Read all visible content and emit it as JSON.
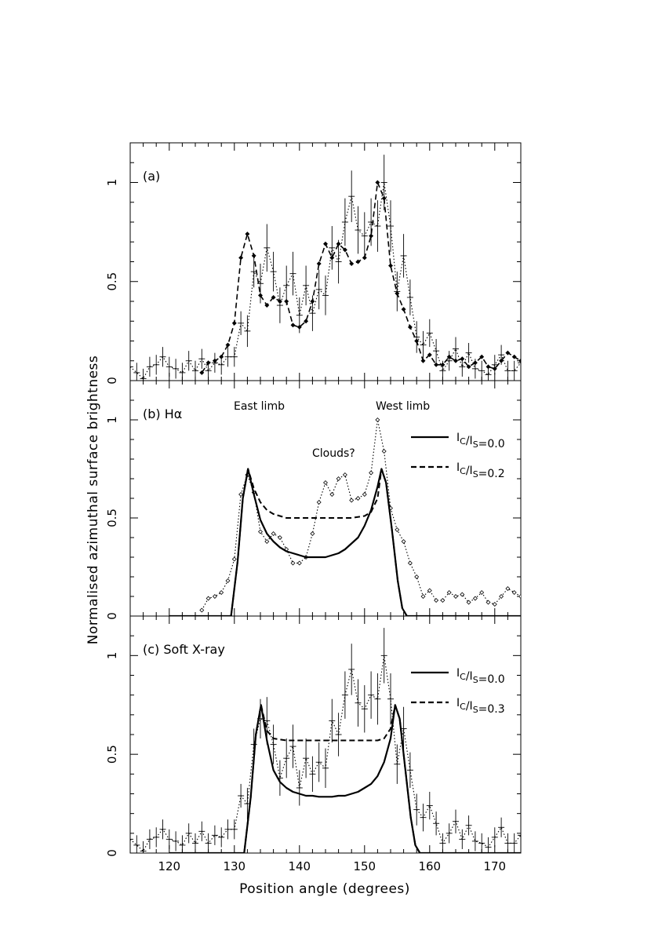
{
  "chart_data": {
    "type": "line",
    "xlabel": "Position angle (degrees)",
    "ylabel": "Normalised azimuthal surface brightness",
    "xlim": [
      114,
      174
    ],
    "x_ticks": [
      "120",
      "130",
      "140",
      "150",
      "160",
      "170"
    ],
    "x_tick_values": [
      120,
      130,
      140,
      150,
      160,
      170
    ],
    "ylim": [
      0,
      1.2
    ],
    "y_ticks": [
      "0",
      "0.5",
      "1"
    ],
    "y_tick_values": [
      0,
      0.5,
      1
    ],
    "panels": [
      {
        "id": "a",
        "label": "(a)",
        "annotations": [],
        "legend": [],
        "series": [
          {
            "style": "dotted-errorbars",
            "x": [
              114,
              115,
              116,
              117,
              118,
              119,
              120,
              121,
              122,
              123,
              124,
              125,
              126,
              127,
              128,
              129,
              130,
              131,
              132,
              133,
              134,
              135,
              136,
              137,
              138,
              139,
              140,
              141,
              142,
              143,
              144,
              145,
              146,
              147,
              148,
              149,
              150,
              151,
              152,
              153,
              154,
              155,
              156,
              157,
              158,
              159,
              160,
              161,
              162,
              163,
              164,
              165,
              166,
              167,
              168,
              169,
              170,
              171,
              172,
              173,
              174
            ],
            "y": [
              0.07,
              0.04,
              0.01,
              0.07,
              0.08,
              0.12,
              0.07,
              0.06,
              0.04,
              0.1,
              0.05,
              0.11,
              0.05,
              0.09,
              0.08,
              0.12,
              0.12,
              0.29,
              0.25,
              0.55,
              0.49,
              0.67,
              0.55,
              0.38,
              0.48,
              0.54,
              0.33,
              0.48,
              0.34,
              0.46,
              0.43,
              0.67,
              0.6,
              0.8,
              0.93,
              0.76,
              0.73,
              0.8,
              0.78,
              1.0,
              0.78,
              0.45,
              0.63,
              0.42,
              0.22,
              0.18,
              0.24,
              0.15,
              0.05,
              0.1,
              0.16,
              0.07,
              0.14,
              0.06,
              0.05,
              0.03,
              0.08,
              0.13,
              0.05,
              0.05,
              0.09
            ],
            "err": [
              0.05,
              0.05,
              0.05,
              0.05,
              0.05,
              0.05,
              0.05,
              0.05,
              0.05,
              0.05,
              0.05,
              0.05,
              0.05,
              0.05,
              0.05,
              0.05,
              0.05,
              0.06,
              0.08,
              0.08,
              0.1,
              0.12,
              0.1,
              0.09,
              0.1,
              0.11,
              0.09,
              0.1,
              0.09,
              0.1,
              0.1,
              0.11,
              0.11,
              0.12,
              0.13,
              0.12,
              0.12,
              0.12,
              0.13,
              0.14,
              0.13,
              0.1,
              0.11,
              0.09,
              0.08,
              0.07,
              0.07,
              0.06,
              0.05,
              0.05,
              0.06,
              0.05,
              0.05,
              0.05,
              0.05,
              0.05,
              0.05,
              0.05,
              0.05,
              0.05,
              0.05
            ]
          },
          {
            "style": "dashed-diamonds",
            "x": [
              125,
              126,
              127,
              128,
              129,
              130,
              131,
              132,
              133,
              134,
              135,
              136,
              137,
              138,
              139,
              140,
              141,
              142,
              143,
              144,
              145,
              146,
              147,
              148,
              149,
              150,
              151,
              152,
              153,
              154,
              155,
              156,
              157,
              158,
              159,
              160,
              161,
              162,
              163,
              164,
              165,
              166,
              167,
              168,
              169,
              170,
              171,
              172,
              173,
              174
            ],
            "y": [
              0.04,
              0.09,
              0.1,
              0.12,
              0.18,
              0.29,
              0.62,
              0.74,
              0.63,
              0.43,
              0.38,
              0.42,
              0.4,
              0.4,
              0.28,
              0.27,
              0.3,
              0.4,
              0.59,
              0.69,
              0.62,
              0.69,
              0.66,
              0.59,
              0.6,
              0.62,
              0.73,
              1.0,
              0.92,
              0.58,
              0.44,
              0.36,
              0.27,
              0.2,
              0.1,
              0.13,
              0.08,
              0.08,
              0.12,
              0.1,
              0.11,
              0.07,
              0.09,
              0.12,
              0.07,
              0.06,
              0.1,
              0.14,
              0.12,
              0.1
            ]
          }
        ]
      },
      {
        "id": "b",
        "label": "(b) Hα",
        "annotations": [
          "East limb",
          "West limb",
          "Clouds?"
        ],
        "legend": [
          {
            "style": "solid",
            "text_before": "I",
            "sub1": "C",
            "mid": "/I",
            "sub2": "S",
            "value": "=0.0"
          },
          {
            "style": "dashed",
            "text_before": "I",
            "sub1": "C",
            "mid": "/I",
            "sub2": "S",
            "value": "=0.2"
          }
        ],
        "series": [
          {
            "style": "dotted-diamonds",
            "x": [
              125,
              126,
              127,
              128,
              129,
              130,
              131,
              132,
              133,
              134,
              135,
              136,
              137,
              138,
              139,
              140,
              141,
              142,
              143,
              144,
              145,
              146,
              147,
              148,
              149,
              150,
              151,
              152,
              153,
              154,
              155,
              156,
              157,
              158,
              159,
              160,
              161,
              162,
              163,
              164,
              165,
              166,
              167,
              168,
              169,
              170,
              171,
              172,
              173,
              174
            ],
            "y": [
              0.03,
              0.09,
              0.1,
              0.12,
              0.18,
              0.29,
              0.62,
              0.72,
              0.63,
              0.43,
              0.38,
              0.42,
              0.4,
              0.34,
              0.27,
              0.27,
              0.3,
              0.42,
              0.58,
              0.68,
              0.62,
              0.7,
              0.72,
              0.59,
              0.6,
              0.62,
              0.73,
              1.0,
              0.84,
              0.55,
              0.44,
              0.38,
              0.27,
              0.2,
              0.1,
              0.13,
              0.08,
              0.08,
              0.12,
              0.1,
              0.11,
              0.07,
              0.09,
              0.12,
              0.07,
              0.06,
              0.1,
              0.14,
              0.12,
              0.1
            ]
          },
          {
            "style": "solid-model",
            "x": [
              120,
              129.5,
              130.5,
              131.3,
              132.1,
              133,
              134,
              135,
              136,
              137,
              138,
              139,
              140,
              141,
              142,
              143,
              144,
              145,
              146,
              147,
              148,
              149,
              150,
              151,
              152,
              152.6,
              153.3,
              154.2,
              155.1,
              155.8,
              156.5,
              174
            ],
            "y": [
              0,
              0,
              0.28,
              0.6,
              0.75,
              0.62,
              0.49,
              0.42,
              0.38,
              0.35,
              0.33,
              0.32,
              0.31,
              0.3,
              0.3,
              0.3,
              0.3,
              0.31,
              0.32,
              0.34,
              0.37,
              0.4,
              0.46,
              0.54,
              0.66,
              0.75,
              0.68,
              0.44,
              0.18,
              0.04,
              0,
              0
            ]
          },
          {
            "style": "dashed-model",
            "x": [
              120,
              129.5,
              130.5,
              131.3,
              132.1,
              133,
              134,
              135,
              136,
              138,
              140,
              142,
              144,
              146,
              148,
              150,
              151,
              152,
              152.6,
              153.3,
              154.2,
              155.1,
              155.8,
              156.5,
              174
            ],
            "y": [
              0,
              0,
              0.28,
              0.6,
              0.75,
              0.65,
              0.58,
              0.54,
              0.52,
              0.5,
              0.5,
              0.5,
              0.5,
              0.5,
              0.5,
              0.51,
              0.53,
              0.6,
              0.75,
              0.68,
              0.44,
              0.18,
              0.04,
              0,
              0
            ]
          }
        ]
      },
      {
        "id": "c",
        "label": "(c) Soft X-ray",
        "annotations": [],
        "legend": [
          {
            "style": "solid",
            "text_before": "I",
            "sub1": "C",
            "mid": "/I",
            "sub2": "S",
            "value": "=0.0"
          },
          {
            "style": "dashed",
            "text_before": "I",
            "sub1": "C",
            "mid": "/I",
            "sub2": "S",
            "value": "=0.3"
          }
        ],
        "series": [
          {
            "style": "dotted-errorbars",
            "x": [
              114,
              115,
              116,
              117,
              118,
              119,
              120,
              121,
              122,
              123,
              124,
              125,
              126,
              127,
              128,
              129,
              130,
              131,
              132,
              133,
              134,
              135,
              136,
              137,
              138,
              139,
              140,
              141,
              142,
              143,
              144,
              145,
              146,
              147,
              148,
              149,
              150,
              151,
              152,
              153,
              154,
              155,
              156,
              157,
              158,
              159,
              160,
              161,
              162,
              163,
              164,
              165,
              166,
              167,
              168,
              169,
              170,
              171,
              172,
              173,
              174
            ],
            "y": [
              0.07,
              0.04,
              0.01,
              0.07,
              0.08,
              0.12,
              0.07,
              0.06,
              0.04,
              0.1,
              0.05,
              0.11,
              0.05,
              0.09,
              0.08,
              0.12,
              0.12,
              0.29,
              0.25,
              0.55,
              0.68,
              0.67,
              0.55,
              0.38,
              0.48,
              0.54,
              0.33,
              0.48,
              0.4,
              0.46,
              0.43,
              0.67,
              0.6,
              0.8,
              0.93,
              0.76,
              0.73,
              0.8,
              0.78,
              1.0,
              0.78,
              0.45,
              0.63,
              0.42,
              0.22,
              0.18,
              0.24,
              0.15,
              0.05,
              0.1,
              0.16,
              0.07,
              0.14,
              0.06,
              0.05,
              0.03,
              0.08,
              0.13,
              0.05,
              0.05,
              0.09
            ],
            "err": [
              0.05,
              0.05,
              0.05,
              0.05,
              0.05,
              0.05,
              0.05,
              0.05,
              0.05,
              0.05,
              0.05,
              0.05,
              0.05,
              0.05,
              0.05,
              0.05,
              0.05,
              0.06,
              0.08,
              0.08,
              0.1,
              0.12,
              0.1,
              0.09,
              0.1,
              0.11,
              0.09,
              0.1,
              0.09,
              0.1,
              0.1,
              0.11,
              0.11,
              0.12,
              0.13,
              0.12,
              0.12,
              0.12,
              0.13,
              0.14,
              0.13,
              0.1,
              0.11,
              0.09,
              0.08,
              0.07,
              0.07,
              0.06,
              0.05,
              0.05,
              0.06,
              0.05,
              0.05,
              0.05,
              0.05,
              0.05,
              0.05,
              0.05,
              0.05,
              0.05,
              0.05
            ]
          },
          {
            "style": "solid-model",
            "x": [
              120,
              131.5,
              132.5,
              133.3,
              134.1,
              135,
              136,
              137,
              138,
              139,
              140,
              141,
              142,
              143,
              144,
              145,
              146,
              147,
              148,
              149,
              150,
              151,
              152,
              153,
              154,
              154.7,
              155.4,
              156.2,
              157.1,
              157.8,
              158.5,
              174
            ],
            "y": [
              0,
              0,
              0.28,
              0.6,
              0.75,
              0.57,
              0.42,
              0.36,
              0.33,
              0.31,
              0.3,
              0.29,
              0.29,
              0.285,
              0.285,
              0.285,
              0.29,
              0.29,
              0.3,
              0.31,
              0.33,
              0.35,
              0.39,
              0.46,
              0.58,
              0.75,
              0.68,
              0.44,
              0.18,
              0.04,
              0,
              0
            ]
          },
          {
            "style": "dashed-model",
            "x": [
              120,
              131.5,
              132.5,
              133.3,
              134.1,
              135,
              136,
              138,
              140,
              142,
              144,
              146,
              148,
              150,
              152,
              153,
              154,
              154.7,
              155.4,
              156.2,
              157.1,
              157.8,
              158.5,
              174
            ],
            "y": [
              0,
              0,
              0.28,
              0.6,
              0.75,
              0.62,
              0.58,
              0.57,
              0.57,
              0.57,
              0.57,
              0.57,
              0.57,
              0.57,
              0.57,
              0.58,
              0.63,
              0.75,
              0.68,
              0.44,
              0.18,
              0.04,
              0,
              0
            ]
          }
        ]
      }
    ]
  }
}
